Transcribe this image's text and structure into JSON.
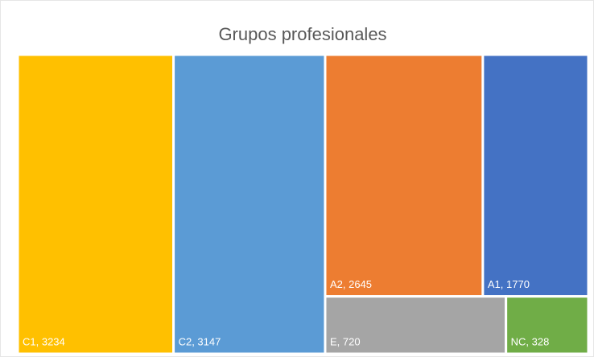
{
  "chart_data": {
    "type": "treemap",
    "title": "Grupos profesionales",
    "values": [
      3234,
      3147,
      2645,
      1770,
      720,
      328
    ],
    "value_labels": [
      "C1, 3234",
      "C2, 3147",
      "A2, 2645",
      "A1, 1770",
      "E, 720",
      "NC, 328"
    ],
    "colors": [
      "#ffc000",
      "#5b9bd5",
      "#ed7d31",
      "#4472c4",
      "#a5a5a5",
      "#70ad47"
    ]
  }
}
